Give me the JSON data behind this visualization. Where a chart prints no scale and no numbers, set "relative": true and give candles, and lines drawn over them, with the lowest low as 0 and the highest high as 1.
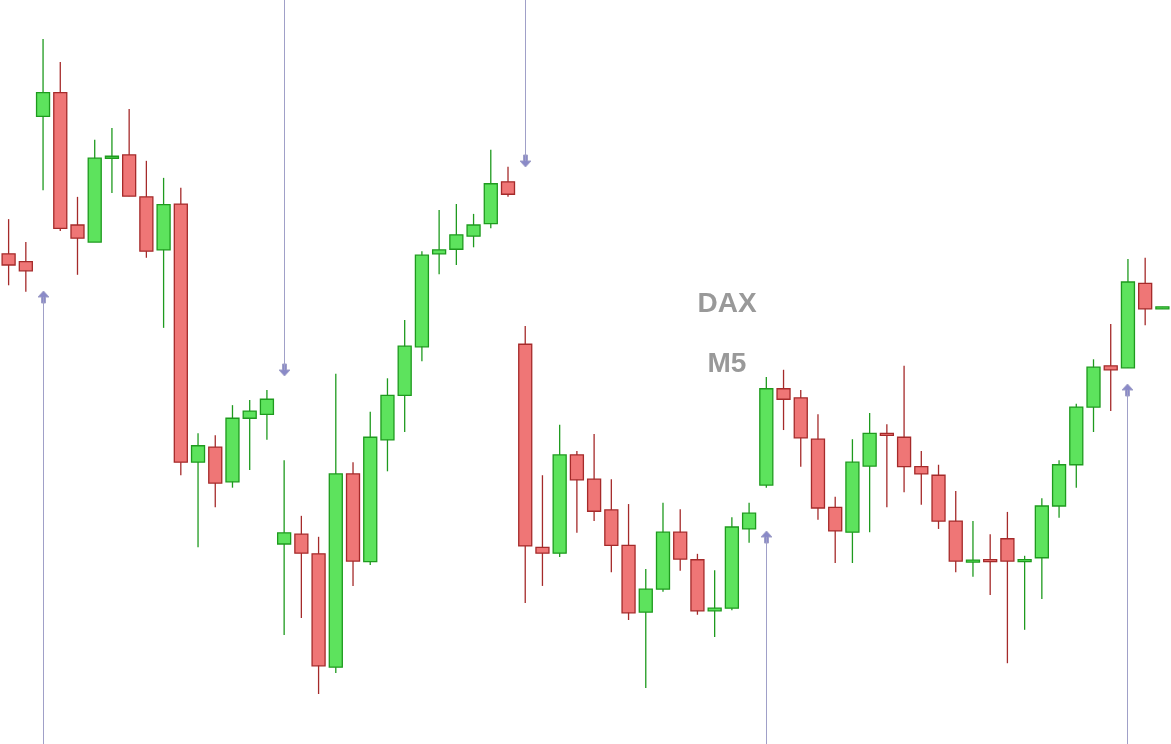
{
  "chart_data": {
    "type": "candlestick",
    "title": "DAX",
    "subtitle": "M5",
    "relative": true,
    "categories": [
      null,
      null,
      null,
      null,
      null,
      null,
      null,
      null,
      null,
      null,
      null,
      null,
      null,
      null,
      null,
      null,
      null,
      null,
      null,
      null,
      null,
      null,
      null,
      null,
      null,
      null,
      null,
      null,
      null,
      null,
      null,
      null,
      null,
      null,
      null,
      null,
      null,
      null,
      null,
      null,
      null,
      null,
      null,
      null,
      null,
      null,
      null,
      null,
      null,
      null,
      null,
      null,
      null,
      null,
      null,
      null,
      null,
      null,
      null,
      null,
      null,
      null,
      null,
      null,
      null,
      null,
      null,
      null
    ],
    "ohlc": [
      [
        0.672,
        0.725,
        0.624,
        0.655
      ],
      [
        0.66,
        0.69,
        0.614,
        0.646
      ],
      [
        0.882,
        1,
        0.769,
        0.918
      ],
      [
        0.918,
        0.965,
        0.707,
        0.711
      ],
      [
        0.716,
        0.759,
        0.64,
        0.696
      ],
      [
        0.69,
        0.846,
        0.69,
        0.818
      ],
      [
        0.818,
        0.864,
        0.765,
        0.821
      ],
      [
        0.823,
        0.893,
        0.76,
        0.76
      ],
      [
        0.759,
        0.814,
        0.666,
        0.676
      ],
      [
        0.678,
        0.788,
        0.559,
        0.747
      ],
      [
        0.748,
        0.773,
        0.334,
        0.354
      ],
      [
        0.354,
        0.398,
        0.224,
        0.379
      ],
      [
        0.377,
        0.395,
        0.285,
        0.322
      ],
      [
        0.324,
        0.441,
        0.315,
        0.421
      ],
      [
        0.421,
        0.449,
        0.342,
        0.432
      ],
      [
        0.427,
        0.464,
        0.388,
        0.45
      ],
      [
        0.229,
        0.357,
        0.09,
        0.246
      ],
      [
        0.244,
        0.272,
        0.116,
        0.215
      ],
      [
        0.214,
        0.24,
        0,
        0.043
      ],
      [
        0.041,
        0.489,
        0.032,
        0.336
      ],
      [
        0.336,
        0.354,
        0.165,
        0.203
      ],
      [
        0.202,
        0.431,
        0.197,
        0.392
      ],
      [
        0.388,
        0.482,
        0.34,
        0.456
      ],
      [
        0.456,
        0.571,
        0.4,
        0.531
      ],
      [
        0.53,
        0.676,
        0.508,
        0.67
      ],
      [
        0.672,
        0.739,
        0.641,
        0.678
      ],
      [
        0.679,
        0.748,
        0.655,
        0.701
      ],
      [
        0.699,
        0.733,
        0.682,
        0.716
      ],
      [
        0.718,
        0.831,
        0.711,
        0.779
      ],
      [
        0.782,
        0.805,
        0.759,
        0.763
      ],
      [
        0.534,
        0.562,
        0.139,
        0.226
      ],
      [
        0.224,
        0.334,
        0.165,
        0.215
      ],
      [
        0.215,
        0.411,
        0.209,
        0.365
      ],
      [
        0.365,
        0.371,
        0.246,
        0.327
      ],
      [
        0.328,
        0.397,
        0.264,
        0.279
      ],
      [
        0.281,
        0.328,
        0.186,
        0.227
      ],
      [
        0.227,
        0.29,
        0.113,
        0.124
      ],
      [
        0.125,
        0.191,
        0.009,
        0.16
      ],
      [
        0.16,
        0.292,
        0.156,
        0.247
      ],
      [
        0.247,
        0.282,
        0.188,
        0.206
      ],
      [
        0.205,
        0.214,
        0.121,
        0.127
      ],
      [
        0.127,
        0.189,
        0.087,
        0.131
      ],
      [
        0.131,
        0.27,
        0.128,
        0.255
      ],
      [
        0.252,
        0.292,
        0.231,
        0.276
      ],
      [
        0.319,
        0.484,
        0.315,
        0.466
      ],
      [
        0.466,
        0.495,
        0.403,
        0.45
      ],
      [
        0.452,
        0.464,
        0.347,
        0.391
      ],
      [
        0.389,
        0.427,
        0.266,
        0.284
      ],
      [
        0.285,
        0.301,
        0.2,
        0.249
      ],
      [
        0.247,
        0.389,
        0.2,
        0.354
      ],
      [
        0.348,
        0.429,
        0.247,
        0.398
      ],
      [
        0.398,
        0.412,
        0.285,
        0.395
      ],
      [
        0.392,
        0.501,
        0.308,
        0.347
      ],
      [
        0.347,
        0.371,
        0.289,
        0.336
      ],
      [
        0.334,
        0.35,
        0.252,
        0.264
      ],
      [
        0.264,
        0.31,
        0.186,
        0.203
      ],
      [
        0.203,
        0.264,
        0.179,
        0.203
      ],
      [
        0.205,
        0.244,
        0.151,
        0.202
      ],
      [
        0.237,
        0.278,
        0.047,
        0.203
      ],
      [
        0.202,
        0.211,
        0.098,
        0.205
      ],
      [
        0.208,
        0.299,
        0.145,
        0.287
      ],
      [
        0.287,
        0.357,
        0.269,
        0.35
      ],
      [
        0.35,
        0.443,
        0.315,
        0.438
      ],
      [
        0.438,
        0.511,
        0.4,
        0.499
      ],
      [
        0.501,
        0.565,
        0.432,
        0.495
      ],
      [
        0.498,
        0.664,
        0.498,
        0.629
      ],
      [
        0.627,
        0.666,
        0.563,
        0.588
      ],
      [
        0.588,
        0.591,
        0.588,
        0.591
      ]
    ]
  }
}
